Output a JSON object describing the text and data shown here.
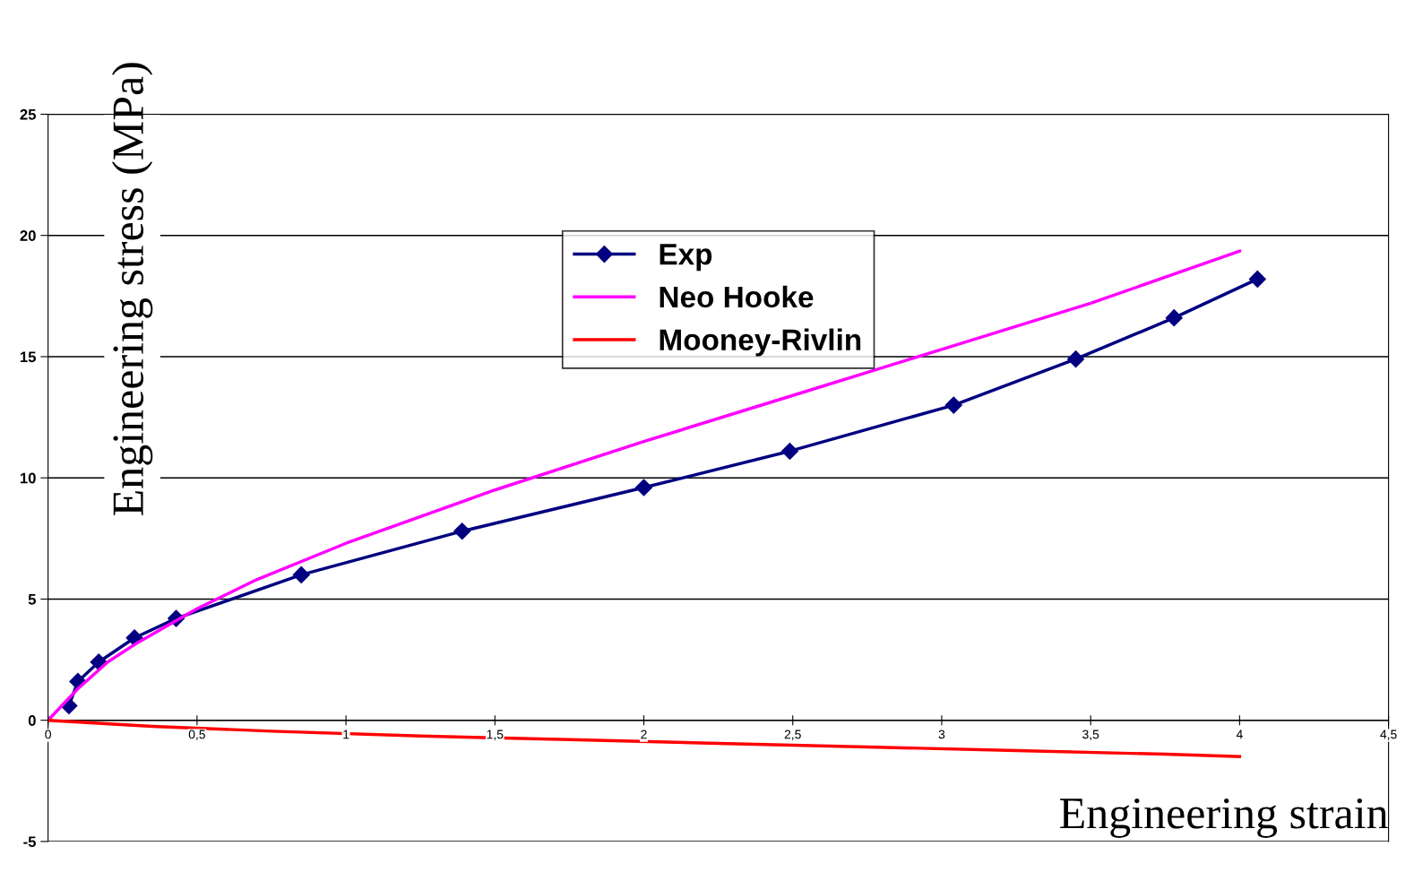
{
  "chart_data": {
    "type": "line",
    "xlabel": "Engineering strain",
    "ylabel": "Engineering stress (MPa)",
    "xlim": [
      0,
      4.5
    ],
    "ylim": [
      -5,
      25
    ],
    "xticks": [
      0,
      {
        "value": 0.5,
        "label": "0,5"
      },
      1,
      {
        "value": 1.5,
        "label": "1,5"
      },
      2,
      {
        "value": 2.5,
        "label": "2,5"
      },
      3,
      {
        "value": 3.5,
        "label": "3,5"
      },
      4,
      {
        "value": 4.5,
        "label": "4,5"
      }
    ],
    "yticks": [
      -5,
      0,
      5,
      10,
      15,
      20,
      25
    ],
    "grid": "y",
    "legend": "top",
    "line_style": "solid",
    "series": [
      {
        "name": "Exp",
        "color": "#000080",
        "marker": "diamond",
        "x": [
          0.07,
          0.1,
          0.17,
          0.29,
          0.43,
          0.85,
          1.39,
          2.0,
          2.49,
          3.04,
          3.45,
          3.78,
          4.06
        ],
        "values": [
          0.6,
          1.6,
          2.4,
          3.4,
          4.2,
          6.0,
          7.8,
          9.6,
          11.1,
          13.0,
          14.9,
          16.6,
          18.2
        ]
      },
      {
        "name": "Neo Hooke",
        "color": "#ff00ff",
        "marker": "none",
        "x": [
          0,
          0.1,
          0.2,
          0.3,
          0.4,
          0.5,
          0.7,
          1.0,
          1.5,
          2.0,
          2.5,
          3.0,
          3.5,
          4.0
        ],
        "values": [
          0,
          1.3,
          2.4,
          3.2,
          3.9,
          4.6,
          5.8,
          7.3,
          9.5,
          11.5,
          13.4,
          15.3,
          17.2,
          19.35
        ]
      },
      {
        "name": "Mooney-Rivlin",
        "color": "#ff0000",
        "marker": "none",
        "x": [
          0,
          0.35,
          0.75,
          1.25,
          1.75,
          2.25,
          2.75,
          3.25,
          3.75,
          4.0
        ],
        "values": [
          0,
          -0.25,
          -0.45,
          -0.65,
          -0.8,
          -0.95,
          -1.1,
          -1.25,
          -1.4,
          -1.5
        ]
      }
    ]
  }
}
